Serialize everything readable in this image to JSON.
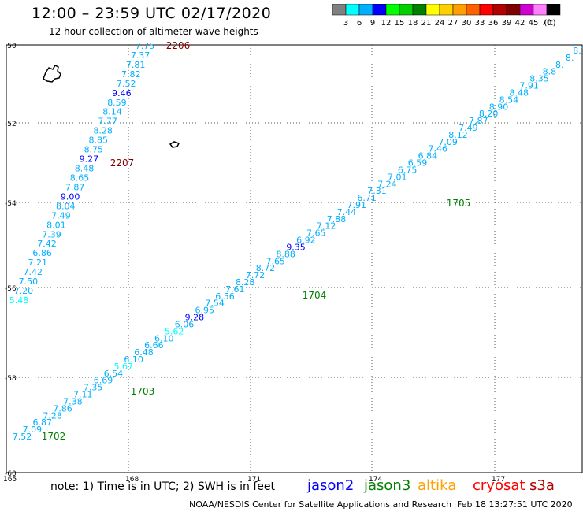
{
  "header": {
    "title": "12:00 – 23:59 UTC 02/17/2020",
    "subtitle": "12 hour collection of altimeter wave heights"
  },
  "legend": {
    "colors": [
      "#808080",
      "#00ffff",
      "#00b0ff",
      "#0000ff",
      "#00ff00",
      "#00d000",
      "#008000",
      "#ffff00",
      "#ffd000",
      "#ffa000",
      "#ff6000",
      "#ff0000",
      "#b00000",
      "#800000",
      "#d000d0",
      "#ff80ff",
      "#000000"
    ],
    "labels": [
      "3",
      "6",
      "9",
      "12",
      "15",
      "18",
      "21",
      "24",
      "27",
      "30",
      "33",
      "36",
      "39",
      "42",
      "45",
      "70",
      "(ft)"
    ],
    "stops_ft": [
      3,
      6,
      9,
      12,
      15,
      18,
      21,
      24,
      27,
      30,
      33,
      36,
      39,
      42,
      45,
      70
    ]
  },
  "axes": {
    "lat_ticks": [
      "-50",
      "-52",
      "-54",
      "-56",
      "-58",
      "-60"
    ],
    "lon_ticks": [
      "165",
      "168",
      "171",
      "174",
      "177"
    ],
    "lon_range": [
      165,
      179.4
    ],
    "lat_range": [
      -50,
      -60
    ]
  },
  "tracks": {
    "west": {
      "values": [
        "7.75",
        "7.37",
        "7.81",
        "7.82",
        "7.52",
        "9.46",
        "8.59",
        "8.14",
        "7.77",
        "8.28",
        "8.85",
        "8.75",
        "9.27",
        "8.48",
        "8.65",
        "7.87",
        "9.00",
        "8.04",
        "7.49",
        "8.01",
        "7.39",
        "7.42",
        "6.86",
        "7.21",
        "7.42",
        "7.50",
        "7.20",
        "5.48"
      ],
      "labels": [
        {
          "text": "2206",
          "color": "#800000"
        },
        {
          "text": "2207",
          "color": "#800000"
        }
      ]
    },
    "east": {
      "values": [
        "7.52",
        "7.09",
        "6.87",
        "7.28",
        "7.86",
        "7.38",
        "7.11",
        "7.35",
        "6.69",
        "6.54",
        "5.67",
        "6.10",
        "6.48",
        "6.66",
        "6.10",
        "5.62",
        "6.06",
        "9.28",
        "6.95",
        "7.54",
        "6.56",
        "7.61",
        "8.28",
        "7.72",
        "8.72",
        "7.65",
        "8.88",
        "9.35",
        "6.92",
        "7.65",
        "7.12",
        "7.88",
        "7.44",
        "7.91",
        "6.71",
        "7.31",
        "7.24",
        "7.01",
        "6.75",
        "6.59",
        "6.84",
        "7.46",
        "7.09",
        "8.12",
        "7.49",
        "7.87",
        "8.20",
        "8.90",
        "8.54",
        "8.48",
        "7.91",
        "8.35",
        "8.8",
        "8.",
        "8.",
        "8.7"
      ],
      "labels": [
        {
          "text": "1702",
          "color": "#008000"
        },
        {
          "text": "1703",
          "color": "#008000"
        },
        {
          "text": "1704",
          "color": "#008000"
        },
        {
          "text": "1705",
          "color": "#008000"
        }
      ]
    }
  },
  "footer": {
    "note": "note: 1) Time is in UTC; 2) SWH is in feet",
    "satellites": [
      {
        "name": "jason2",
        "color": "#0000ff"
      },
      {
        "name": "jason3",
        "color": "#008000"
      },
      {
        "name": "altika",
        "color": "#ffa000"
      },
      {
        "name": "cryosat",
        "color": "#ff0000"
      },
      {
        "name": "s3a",
        "color": "#b00000"
      }
    ],
    "credit": "NOAA/NESDIS Center for Satellite Applications and Research",
    "stamp": "Feb 18 13:27:51 UTC 2020"
  }
}
